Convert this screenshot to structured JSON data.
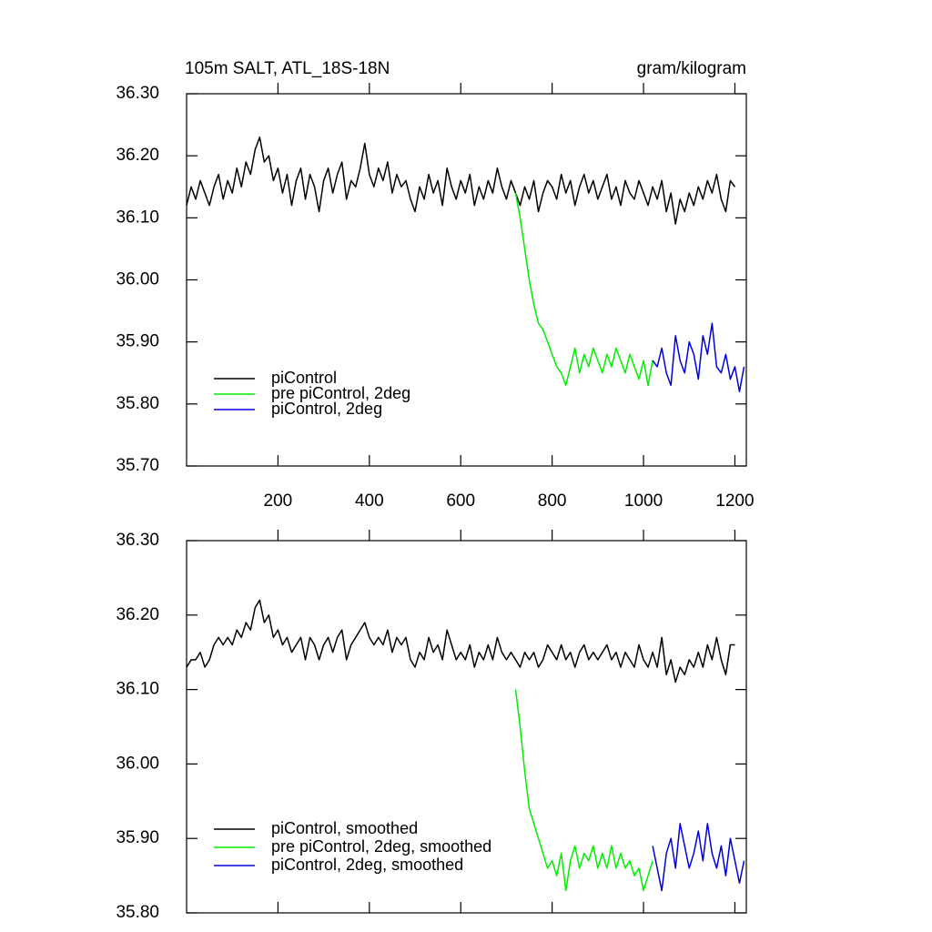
{
  "chart_data": [
    {
      "type": "line",
      "title": "105m SALT, ATL_18S-18N",
      "subtitle": "gram/kilogram",
      "xlim": [
        0,
        1225
      ],
      "xticks": [
        200,
        400,
        600,
        800,
        1000,
        1200
      ],
      "ylim": [
        35.7,
        36.3
      ],
      "yticks": [
        {
          "value": 35.7,
          "label": "35.70"
        },
        {
          "value": 35.8,
          "label": "35.80"
        },
        {
          "value": 35.9,
          "label": "35.90"
        },
        {
          "value": 36.0,
          "label": "36.00"
        },
        {
          "value": 36.1,
          "label": "36.10"
        },
        {
          "value": 36.2,
          "label": "36.20"
        },
        {
          "value": 36.3,
          "label": "36.30"
        }
      ],
      "legend": "lower left",
      "series": [
        {
          "name": "piControl",
          "color": "#000000",
          "x": [
            0,
            10,
            20,
            30,
            40,
            50,
            60,
            70,
            80,
            90,
            100,
            110,
            120,
            130,
            140,
            150,
            160,
            170,
            180,
            190,
            200,
            210,
            220,
            230,
            240,
            250,
            260,
            270,
            280,
            290,
            300,
            310,
            320,
            330,
            340,
            350,
            360,
            370,
            380,
            390,
            400,
            410,
            420,
            430,
            440,
            450,
            460,
            470,
            480,
            490,
            500,
            510,
            520,
            530,
            540,
            550,
            560,
            570,
            580,
            590,
            600,
            610,
            620,
            630,
            640,
            650,
            660,
            670,
            680,
            690,
            700,
            710,
            720,
            730,
            740,
            750,
            760,
            770,
            780,
            790,
            800,
            810,
            820,
            830,
            840,
            850,
            860,
            870,
            880,
            890,
            900,
            910,
            920,
            930,
            940,
            950,
            960,
            970,
            980,
            990,
            1000,
            1010,
            1020,
            1030,
            1040,
            1050,
            1060,
            1070,
            1080,
            1090,
            1100,
            1110,
            1120,
            1130,
            1140,
            1150,
            1160,
            1170,
            1180,
            1190,
            1200
          ],
          "values": [
            36.12,
            36.15,
            36.13,
            36.16,
            36.14,
            36.12,
            36.15,
            36.17,
            36.13,
            36.16,
            36.14,
            36.18,
            36.15,
            36.19,
            36.17,
            36.21,
            36.23,
            36.19,
            36.2,
            36.16,
            36.18,
            36.14,
            36.17,
            36.12,
            36.16,
            36.18,
            36.13,
            36.17,
            36.15,
            36.11,
            36.16,
            36.18,
            36.14,
            36.17,
            36.19,
            36.13,
            36.16,
            36.15,
            36.18,
            36.22,
            36.17,
            36.15,
            36.18,
            36.16,
            36.19,
            36.14,
            36.17,
            36.15,
            36.16,
            36.13,
            36.11,
            36.15,
            36.13,
            36.17,
            36.14,
            36.16,
            36.12,
            36.18,
            36.15,
            36.13,
            36.16,
            36.14,
            36.17,
            36.12,
            36.15,
            36.13,
            36.16,
            36.14,
            36.18,
            36.15,
            36.13,
            36.16,
            36.14,
            36.12,
            36.15,
            36.13,
            36.16,
            36.11,
            36.14,
            36.16,
            36.15,
            36.13,
            36.17,
            36.14,
            36.16,
            36.12,
            36.15,
            36.17,
            36.14,
            36.16,
            36.13,
            36.15,
            36.17,
            36.13,
            36.15,
            36.12,
            36.16,
            36.14,
            36.13,
            36.16,
            36.14,
            36.12,
            36.15,
            36.13,
            36.16,
            36.11,
            36.14,
            36.09,
            36.13,
            36.11,
            36.14,
            36.12,
            36.15,
            36.13,
            36.16,
            36.14,
            36.17,
            36.13,
            36.11,
            36.16,
            36.15
          ]
        },
        {
          "name": "pre piControl, 2deg",
          "color": "#00ee00",
          "x": [
            720,
            730,
            740,
            750,
            760,
            770,
            780,
            790,
            800,
            810,
            820,
            830,
            840,
            850,
            860,
            870,
            880,
            890,
            900,
            910,
            920,
            930,
            940,
            950,
            960,
            970,
            980,
            990,
            1000,
            1010,
            1020
          ],
          "values": [
            36.14,
            36.1,
            36.05,
            36.0,
            35.96,
            35.93,
            35.92,
            35.9,
            35.88,
            35.86,
            35.85,
            35.83,
            35.86,
            35.89,
            35.85,
            35.88,
            35.86,
            35.89,
            35.87,
            35.85,
            35.88,
            35.86,
            35.89,
            35.87,
            35.85,
            35.88,
            35.86,
            35.84,
            35.87,
            35.83,
            35.87
          ]
        },
        {
          "name": "piControl, 2deg",
          "color": "#0000dd",
          "x": [
            1020,
            1030,
            1040,
            1050,
            1060,
            1070,
            1080,
            1090,
            1100,
            1110,
            1120,
            1130,
            1140,
            1150,
            1160,
            1170,
            1180,
            1190,
            1200,
            1210,
            1220
          ],
          "values": [
            35.87,
            35.86,
            35.89,
            35.85,
            35.83,
            35.91,
            35.87,
            35.85,
            35.9,
            35.88,
            35.84,
            35.91,
            35.88,
            35.93,
            35.86,
            35.85,
            35.88,
            35.84,
            35.86,
            35.82,
            35.86
          ]
        }
      ]
    },
    {
      "type": "line",
      "xlim": [
        0,
        1225
      ],
      "ylim": [
        35.8,
        36.3
      ],
      "yticks": [
        {
          "value": 35.8,
          "label": "35.80"
        },
        {
          "value": 35.9,
          "label": "35.90"
        },
        {
          "value": 36.0,
          "label": "36.00"
        },
        {
          "value": 36.1,
          "label": "36.10"
        },
        {
          "value": 36.2,
          "label": "36.20"
        },
        {
          "value": 36.3,
          "label": "36.30"
        }
      ],
      "legend": "lower left",
      "series": [
        {
          "name": "piControl, smoothed",
          "color": "#000000",
          "x": [
            0,
            10,
            20,
            30,
            40,
            50,
            60,
            70,
            80,
            90,
            100,
            110,
            120,
            130,
            140,
            150,
            160,
            170,
            180,
            190,
            200,
            210,
            220,
            230,
            240,
            250,
            260,
            270,
            280,
            290,
            300,
            310,
            320,
            330,
            340,
            350,
            360,
            370,
            380,
            390,
            400,
            410,
            420,
            430,
            440,
            450,
            460,
            470,
            480,
            490,
            500,
            510,
            520,
            530,
            540,
            550,
            560,
            570,
            580,
            590,
            600,
            610,
            620,
            630,
            640,
            650,
            660,
            670,
            680,
            690,
            700,
            710,
            720,
            730,
            740,
            750,
            760,
            770,
            780,
            790,
            800,
            810,
            820,
            830,
            840,
            850,
            860,
            870,
            880,
            890,
            900,
            910,
            920,
            930,
            940,
            950,
            960,
            970,
            980,
            990,
            1000,
            1010,
            1020,
            1030,
            1040,
            1050,
            1060,
            1070,
            1080,
            1090,
            1100,
            1110,
            1120,
            1130,
            1140,
            1150,
            1160,
            1170,
            1180,
            1190,
            1200
          ],
          "values": [
            36.13,
            36.14,
            36.14,
            36.15,
            36.13,
            36.14,
            36.16,
            36.17,
            36.16,
            36.17,
            36.16,
            36.18,
            36.17,
            36.19,
            36.18,
            36.21,
            36.22,
            36.19,
            36.2,
            36.17,
            36.18,
            36.16,
            36.17,
            36.15,
            36.16,
            36.17,
            36.14,
            36.17,
            36.16,
            36.14,
            36.16,
            36.17,
            36.15,
            36.17,
            36.18,
            36.14,
            36.16,
            36.17,
            36.18,
            36.19,
            36.17,
            36.16,
            36.17,
            36.16,
            36.18,
            36.15,
            36.17,
            36.16,
            36.17,
            36.14,
            36.13,
            36.15,
            36.14,
            36.17,
            36.15,
            36.16,
            36.14,
            36.18,
            36.16,
            36.14,
            36.15,
            36.14,
            36.16,
            36.13,
            36.15,
            36.14,
            36.16,
            36.14,
            36.17,
            36.15,
            36.14,
            36.15,
            36.14,
            36.13,
            36.15,
            36.14,
            36.15,
            36.13,
            36.14,
            36.16,
            36.15,
            36.14,
            36.16,
            36.14,
            36.15,
            36.13,
            36.15,
            36.16,
            36.14,
            36.15,
            36.14,
            36.15,
            36.16,
            36.14,
            36.15,
            36.13,
            36.15,
            36.14,
            36.13,
            36.16,
            36.14,
            36.13,
            36.15,
            36.13,
            36.17,
            36.12,
            36.14,
            36.11,
            36.13,
            36.12,
            36.14,
            36.13,
            36.15,
            36.13,
            36.16,
            36.14,
            36.17,
            36.14,
            36.12,
            36.16,
            36.16
          ]
        },
        {
          "name": "pre piControl, 2deg, smoothed",
          "color": "#00ee00",
          "x": [
            720,
            730,
            740,
            750,
            760,
            770,
            780,
            790,
            800,
            810,
            820,
            830,
            840,
            850,
            860,
            870,
            880,
            890,
            900,
            910,
            920,
            930,
            940,
            950,
            960,
            970,
            980,
            990,
            1000,
            1010,
            1020
          ],
          "values": [
            36.1,
            36.05,
            35.99,
            35.94,
            35.92,
            35.9,
            35.88,
            35.86,
            35.87,
            35.85,
            35.88,
            35.83,
            35.87,
            35.89,
            35.86,
            35.88,
            35.87,
            35.89,
            35.86,
            35.88,
            35.86,
            35.89,
            35.86,
            35.88,
            35.86,
            35.87,
            35.85,
            35.86,
            35.83,
            35.85,
            35.87
          ]
        },
        {
          "name": "piControl, 2deg, smoothed",
          "color": "#0000dd",
          "x": [
            1020,
            1030,
            1040,
            1050,
            1060,
            1070,
            1080,
            1090,
            1100,
            1110,
            1120,
            1130,
            1140,
            1150,
            1160,
            1170,
            1180,
            1190,
            1200,
            1210,
            1220
          ],
          "values": [
            35.89,
            35.86,
            35.83,
            35.88,
            35.9,
            35.86,
            35.92,
            35.89,
            35.86,
            35.88,
            35.91,
            35.87,
            35.92,
            35.88,
            35.86,
            35.89,
            35.85,
            35.9,
            35.87,
            35.84,
            35.87
          ]
        }
      ]
    }
  ]
}
